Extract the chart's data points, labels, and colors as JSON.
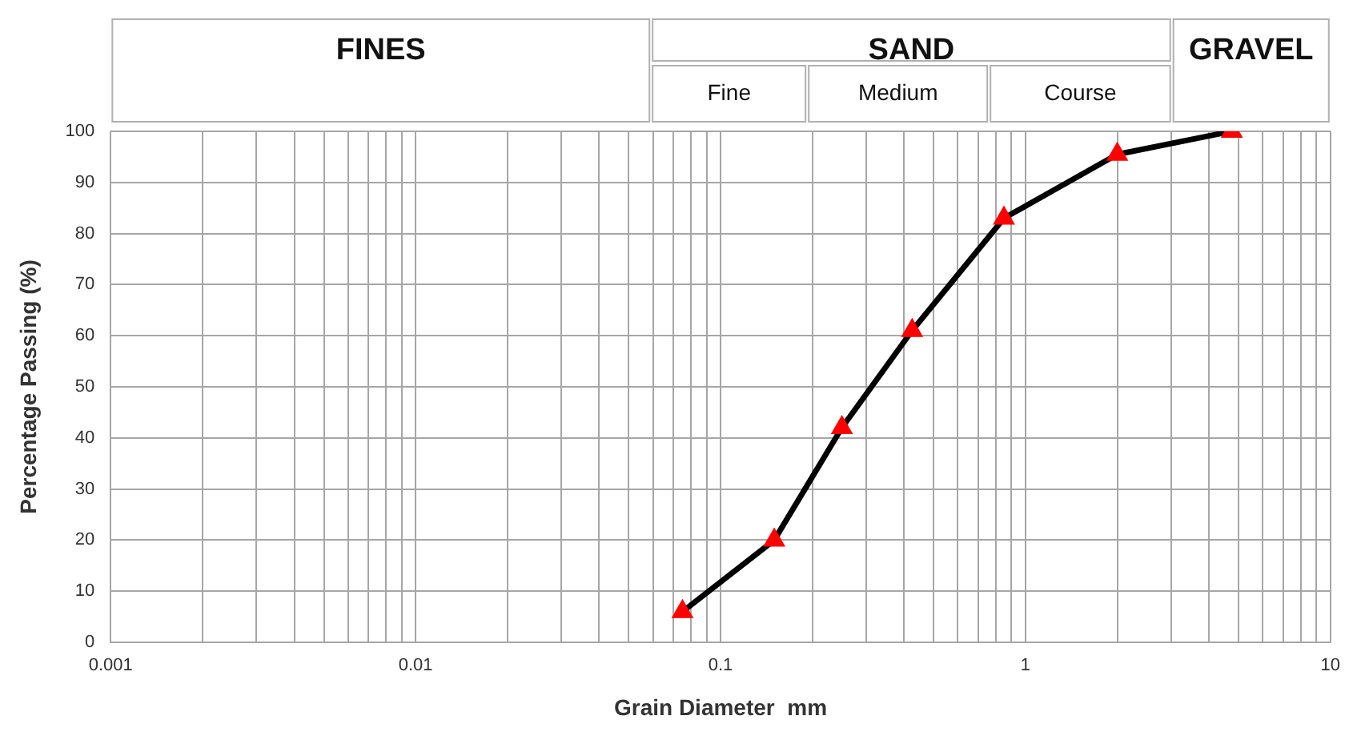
{
  "chart_data": {
    "type": "line",
    "xlabel": "Grain Diameter  mm",
    "ylabel": "Percentage Passing (%)",
    "x": [
      0.075,
      0.15,
      0.25,
      0.425,
      0.85,
      2,
      4.75
    ],
    "series": [
      {
        "color": "#000000",
        "colors": [
          "#ff0000",
          "#ff0000",
          "#ff0000",
          "#ff0000",
          "#ff0000",
          "#ff0000",
          "#ff0000"
        ],
        "values": [
          6,
          20,
          42,
          61,
          83,
          95.5,
          100
        ]
      }
    ],
    "log": "x",
    "xlim": [
      0.001,
      10
    ],
    "ylim": [
      0,
      100
    ],
    "xticks": [
      {
        "value": 0.001,
        "label": "0.001"
      },
      {
        "value": 0.002,
        "label": null
      },
      {
        "value": 0.003,
        "label": null
      },
      {
        "value": 0.004,
        "label": null
      },
      {
        "value": 0.005,
        "label": null
      },
      {
        "value": 0.006,
        "label": null
      },
      {
        "value": 0.007,
        "label": null
      },
      {
        "value": 0.008,
        "label": null
      },
      {
        "value": 0.009,
        "label": null
      },
      {
        "value": 0.01,
        "label": "0.01"
      },
      {
        "value": 0.02,
        "label": null
      },
      {
        "value": 0.03,
        "label": null
      },
      {
        "value": 0.04,
        "label": null
      },
      {
        "value": 0.05,
        "label": null
      },
      {
        "value": 0.06,
        "label": null
      },
      {
        "value": 0.07,
        "label": null
      },
      {
        "value": 0.08,
        "label": null
      },
      {
        "value": 0.09,
        "label": null
      },
      {
        "value": 0.1,
        "label": "0.1"
      },
      {
        "value": 0.2,
        "label": null
      },
      {
        "value": 0.3,
        "label": null
      },
      {
        "value": 0.4,
        "label": null
      },
      {
        "value": 0.5,
        "label": null
      },
      {
        "value": 0.6,
        "label": null
      },
      {
        "value": 0.7,
        "label": null
      },
      {
        "value": 0.8,
        "label": null
      },
      {
        "value": 0.9,
        "label": null
      },
      {
        "value": 1,
        "label": "1"
      },
      {
        "value": 2,
        "label": null
      },
      {
        "value": 3,
        "label": null
      },
      {
        "value": 4,
        "label": null
      },
      {
        "value": 5,
        "label": null
      },
      {
        "value": 6,
        "label": null
      },
      {
        "value": 7,
        "label": null
      },
      {
        "value": 8,
        "label": null
      },
      {
        "value": 9,
        "label": null
      },
      {
        "value": 10,
        "label": "10"
      }
    ],
    "yticks": [
      0,
      10,
      20,
      30,
      40,
      50,
      60,
      70,
      80,
      90,
      100
    ],
    "annotations": [
      "FINES",
      "SAND",
      "Fine",
      "Medium",
      "Course",
      "GRAVEL"
    ],
    "grid": true,
    "legend": false,
    "marker": "triangle",
    "line_style": "solid"
  }
}
